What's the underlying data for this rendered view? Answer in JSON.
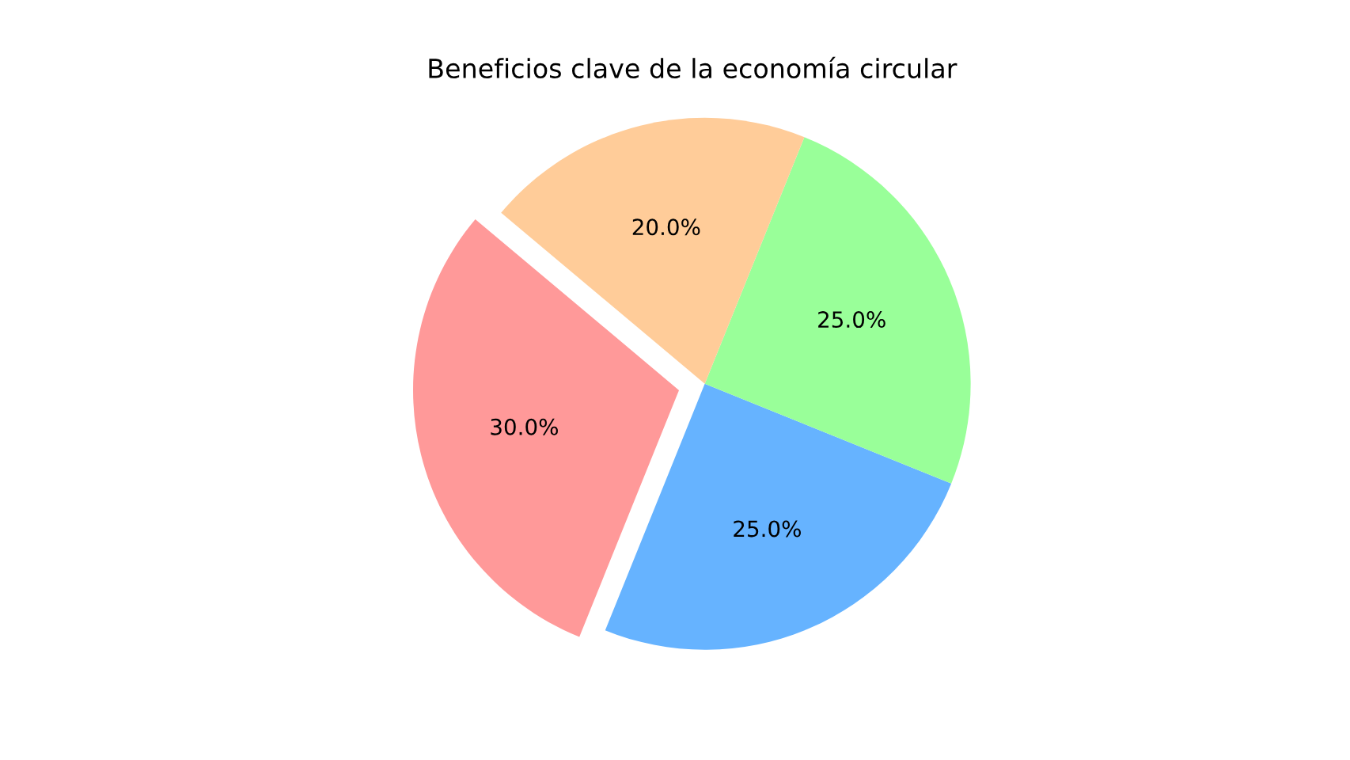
{
  "chart_data": {
    "type": "pie",
    "title": "Beneficios clave de la economía circular",
    "categories": [
      null,
      null,
      null,
      null
    ],
    "values": [
      30,
      25,
      25,
      20
    ],
    "colors": [
      "#ff9999",
      "#66b3ff",
      "#99ff99",
      "#ffcc99"
    ],
    "value_labels": [
      "30.0%",
      "25.0%",
      "25.0%",
      "20.0%"
    ]
  }
}
